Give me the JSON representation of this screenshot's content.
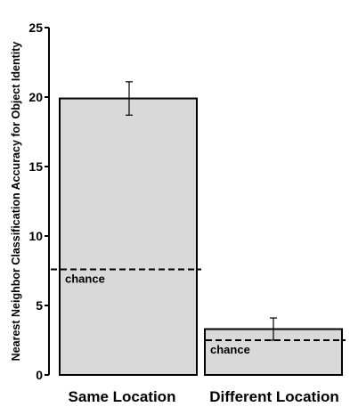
{
  "chart_data": {
    "type": "bar",
    "title": "",
    "xlabel": "",
    "ylabel": "Nearest Neighbor Classification Accuracy for Object Identity",
    "categories": [
      "Same Location",
      "Different Location"
    ],
    "values": [
      19.9,
      3.3
    ],
    "errors": [
      1.2,
      0.8
    ],
    "chance": [
      7.6,
      2.5
    ],
    "chance_label": "chance",
    "ylim": [
      0,
      25
    ],
    "yticks": [
      0,
      5,
      10,
      15,
      20,
      25
    ],
    "grid": false,
    "bar_color": "#d9d9d9"
  }
}
